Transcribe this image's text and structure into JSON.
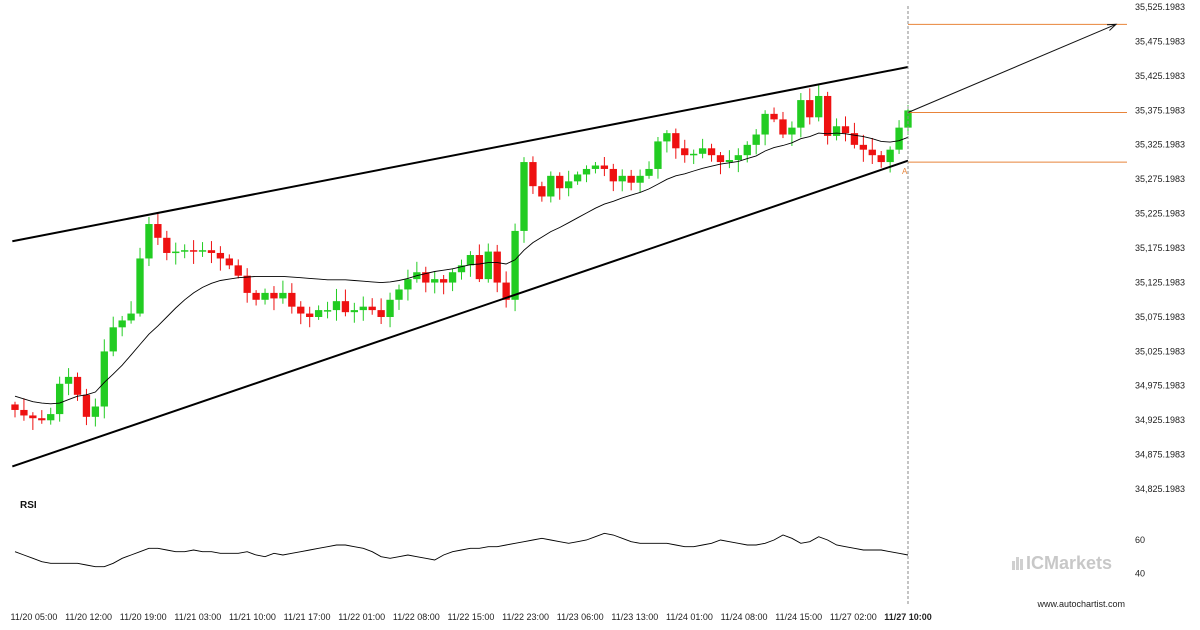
{
  "chart_data": [
    {
      "type": "candlestick",
      "title": "",
      "y_ticks": [
        "35,525.1983",
        "35,475.1983",
        "35,425.1983",
        "35,375.1983",
        "35,325.1983",
        "35,275.1983",
        "35,225.1983",
        "35,175.1983",
        "35,125.1983",
        "35,075.1983",
        "35,025.1983",
        "34,975.1983",
        "34,925.1983",
        "34,875.1983",
        "34,825.1983"
      ],
      "ylim": [
        34800,
        35550
      ],
      "x_ticks": [
        "11/20 05:00",
        "11/20 12:00",
        "11/20 19:00",
        "11/21 03:00",
        "11/21 10:00",
        "11/21 17:00",
        "11/22 01:00",
        "11/22 08:00",
        "11/22 15:00",
        "11/22 23:00",
        "11/23 06:00",
        "11/23 13:00",
        "11/24 01:00",
        "11/24 08:00",
        "11/24 15:00",
        "11/27 02:00",
        "11/27 10:00"
      ],
      "current_x_tick": "11/27 10:00",
      "close": [
        34940,
        34932,
        34928,
        34925,
        34934,
        34978,
        34988,
        34962,
        34930,
        34945,
        35025,
        35060,
        35070,
        35080,
        35160,
        35210,
        35190,
        35168,
        35170,
        35172,
        35170,
        35172,
        35168,
        35160,
        35150,
        35135,
        35110,
        35100,
        35110,
        35102,
        35110,
        35090,
        35080,
        35075,
        35085,
        35085,
        35098,
        35082,
        35085,
        35090,
        35085,
        35075,
        35100,
        35115,
        35130,
        35140,
        35125,
        35130,
        35125,
        35140,
        35150,
        35165,
        35130,
        35170,
        35125,
        35100,
        35200,
        35300,
        35265,
        35250,
        35280,
        35262,
        35272,
        35282,
        35290,
        35295,
        35290,
        35272,
        35280,
        35270,
        35280,
        35290,
        35330,
        35342,
        35320,
        35310,
        35312,
        35320,
        35310,
        35300,
        35303,
        35310,
        35325,
        35340,
        35370,
        35362,
        35340,
        35350,
        35390,
        35365,
        35396,
        35338,
        35352,
        35342,
        35325,
        35318,
        35310,
        35300,
        35318,
        35350,
        35375
      ],
      "series": [
        {
          "name": "",
          "kind": "moving-average",
          "values": [
            34960,
            34956,
            34952,
            34950,
            34949,
            34950,
            34955,
            34960,
            34962,
            34966,
            34980,
            34992,
            35005,
            35020,
            35035,
            35050,
            35062,
            35075,
            35088,
            35100,
            35110,
            35118,
            35124,
            35128,
            35130,
            35132,
            35133,
            35134,
            35134,
            35134,
            35134,
            35133,
            35132,
            35131,
            35130,
            35129,
            35129,
            35129,
            35128,
            35127,
            35126,
            35125,
            35126,
            35128,
            35131,
            35135,
            35138,
            35141,
            35143,
            35145,
            35148,
            35151,
            35152,
            35154,
            35154,
            35152,
            35158,
            35172,
            35183,
            35191,
            35199,
            35205,
            35212,
            35219,
            35226,
            35233,
            35239,
            35243,
            35248,
            35252,
            35256,
            35261,
            35268,
            35275,
            35280,
            35283,
            35287,
            35291,
            35294,
            35297,
            35299,
            35301,
            35305,
            35309,
            35316,
            35321,
            35324,
            35328,
            35334,
            35337,
            35342,
            35341,
            35342,
            35341,
            35339,
            35337,
            35334,
            35330,
            35329,
            35331,
            35336
          ]
        },
        {
          "name": "RSI",
          "values": [
            53,
            51,
            49,
            47,
            46,
            46,
            46,
            46,
            45,
            44,
            44,
            46,
            49,
            51,
            53,
            55,
            55,
            54,
            53,
            53,
            54,
            53,
            53,
            52,
            52,
            52,
            53,
            51,
            50,
            52,
            51,
            52,
            53,
            54,
            55,
            56,
            57,
            57,
            56,
            55,
            53,
            50,
            49,
            50,
            51,
            50,
            49,
            48,
            51,
            53,
            54,
            55,
            55,
            56,
            56,
            57,
            58,
            59,
            60,
            61,
            60,
            59,
            58,
            59,
            60,
            62,
            64,
            63,
            61,
            59,
            58,
            58,
            58,
            58,
            57,
            56,
            56,
            57,
            58,
            60,
            59,
            58,
            57,
            57,
            58,
            60,
            63,
            61,
            58,
            59,
            62,
            60,
            57,
            56,
            55,
            54,
            54,
            54,
            53,
            52,
            51
          ]
        }
      ],
      "rsi_title": "RSI",
      "rsi_ticks": [
        "60",
        "40"
      ],
      "rsi_ylim": [
        30,
        75
      ],
      "pattern": "Rising Wedge",
      "annotation_marker": "A",
      "colors": {
        "up": "#22cc22",
        "down": "#ee1111",
        "trendline": "#000000",
        "ma": "#000000",
        "level": "#e8843a",
        "rsi": "#000000",
        "dashed": "#888888"
      }
    }
  ],
  "branding": {
    "ic": "IC",
    "markets": "Markets",
    "site": "www.autochartist.com"
  }
}
